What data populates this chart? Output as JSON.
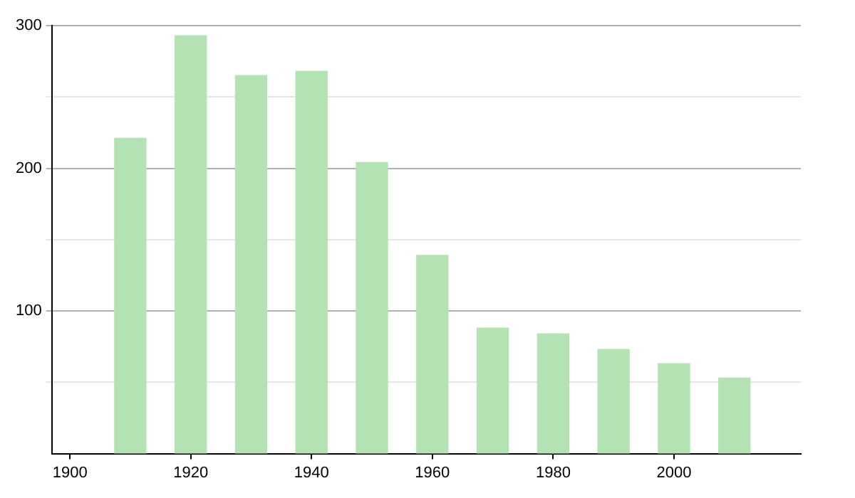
{
  "chart_data": {
    "type": "bar",
    "x": [
      1910,
      1920,
      1930,
      1940,
      1950,
      1960,
      1970,
      1980,
      1990,
      2000,
      2010
    ],
    "values": [
      221,
      293,
      265,
      268,
      204,
      139,
      88,
      84,
      73,
      63,
      53
    ],
    "color": "#b3e2b3",
    "xlim": [
      1897,
      2021
    ],
    "xticks": [
      1900,
      1920,
      1940,
      1960,
      1980,
      2000
    ],
    "ylim": [
      0,
      300
    ],
    "yticks": [
      {
        "value": 50,
        "label": null
      },
      100,
      {
        "value": 150,
        "label": null
      },
      200,
      {
        "value": 250,
        "label": null
      },
      300
    ],
    "grid": "y",
    "legend": false
  }
}
